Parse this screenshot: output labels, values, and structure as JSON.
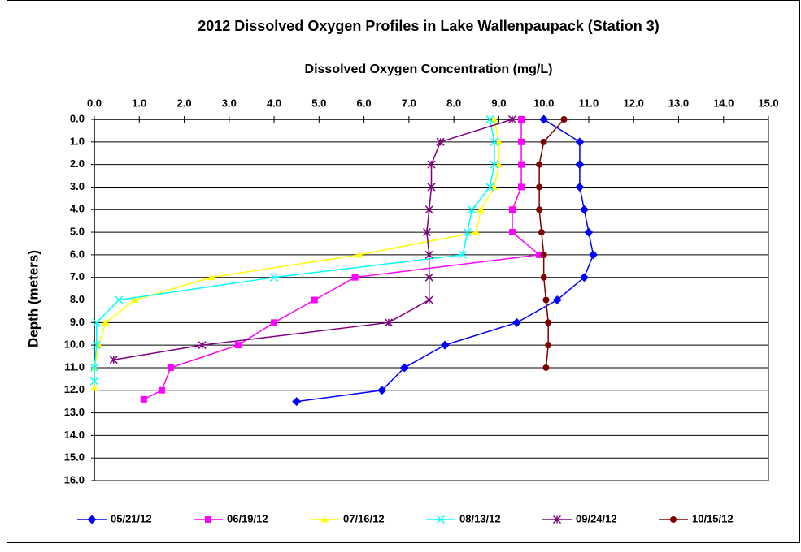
{
  "chart_data": {
    "type": "line",
    "title": "2012 Dissolved Oxygen Profiles in Lake Wallenpaupack (Station 3)",
    "x_label": "Dissolved Oxygen Concentration (mg/L)",
    "y_label": "Depth (meters)",
    "xlim": [
      0,
      15
    ],
    "ylim": [
      16,
      0
    ],
    "y_inverted": true,
    "x_axis_position": "top",
    "grid": true,
    "legend": "bottom",
    "xticks": [
      {
        "value": 0,
        "label": "0.0"
      },
      {
        "value": 1,
        "label": "1.0"
      },
      {
        "value": 2,
        "label": "2.0"
      },
      {
        "value": 3,
        "label": "3.0"
      },
      {
        "value": 4,
        "label": "4.0"
      },
      {
        "value": 5,
        "label": "5.0"
      },
      {
        "value": 6,
        "label": "6.0"
      },
      {
        "value": 7,
        "label": "7.0"
      },
      {
        "value": 8,
        "label": "8.0"
      },
      {
        "value": 9,
        "label": "9.0"
      },
      {
        "value": 10,
        "label": "10.0"
      },
      {
        "value": 11,
        "label": "11.0"
      },
      {
        "value": 12,
        "label": "12.0"
      },
      {
        "value": 13,
        "label": "13.0"
      },
      {
        "value": 14,
        "label": "14.0"
      },
      {
        "value": 15,
        "label": "15.0"
      }
    ],
    "yticks": [
      {
        "value": 0,
        "label": "0.0"
      },
      {
        "value": 1,
        "label": "1.0"
      },
      {
        "value": 2,
        "label": "2.0"
      },
      {
        "value": 3,
        "label": "3.0"
      },
      {
        "value": 4,
        "label": "4.0"
      },
      {
        "value": 5,
        "label": "5.0"
      },
      {
        "value": 6,
        "label": "6.0"
      },
      {
        "value": 7,
        "label": "7.0"
      },
      {
        "value": 8,
        "label": "8.0"
      },
      {
        "value": 9,
        "label": "9.0"
      },
      {
        "value": 10,
        "label": "10.0"
      },
      {
        "value": 11,
        "label": "11.0"
      },
      {
        "value": 12,
        "label": "12.0"
      },
      {
        "value": 13,
        "label": "13.0"
      },
      {
        "value": 14,
        "label": "14.0"
      },
      {
        "value": 15,
        "label": "15.0"
      },
      {
        "value": 16,
        "label": "16.0"
      }
    ],
    "series": [
      {
        "name": "05/21/12",
        "color": "#0000ff",
        "marker": "diamond",
        "x": [
          10.0,
          10.8,
          10.8,
          10.8,
          10.9,
          11.0,
          11.1,
          10.9,
          10.3,
          9.4,
          7.8,
          6.9,
          6.4,
          4.5
        ],
        "values": [
          0,
          1,
          2,
          3,
          4,
          5,
          6,
          7,
          8,
          9,
          10,
          11,
          12,
          12.5
        ]
      },
      {
        "name": "06/19/12",
        "color": "#ff00ff",
        "marker": "square",
        "x": [
          9.5,
          9.5,
          9.5,
          9.5,
          9.3,
          9.3,
          9.9,
          5.8,
          4.9,
          4.0,
          3.2,
          1.7,
          1.5,
          1.1
        ],
        "values": [
          0,
          1,
          2,
          3,
          4,
          5,
          6,
          7,
          8,
          9,
          10,
          11,
          12,
          12.4
        ]
      },
      {
        "name": "07/16/12",
        "color": "#ffff00",
        "marker": "triangle",
        "x": [
          8.9,
          9.0,
          9.0,
          8.9,
          8.6,
          8.5,
          5.9,
          2.6,
          0.9,
          0.25,
          0.1,
          0.0,
          0.0
        ],
        "values": [
          0,
          1,
          2,
          3,
          4,
          5,
          6,
          7,
          8,
          9,
          10,
          11,
          11.9
        ]
      },
      {
        "name": "08/13/12",
        "color": "#00ffff",
        "marker": "x",
        "x": [
          8.8,
          8.9,
          8.9,
          8.8,
          8.4,
          8.3,
          8.2,
          4.0,
          0.55,
          0.05,
          0.05,
          0.0,
          0.0
        ],
        "values": [
          0,
          1,
          2,
          3,
          4,
          5,
          6,
          7,
          8,
          9,
          10,
          11,
          11.6
        ]
      },
      {
        "name": "09/24/12",
        "color": "#800080",
        "marker": "asterisk",
        "x": [
          9.3,
          7.7,
          7.5,
          7.5,
          7.45,
          7.4,
          7.45,
          7.45,
          7.45,
          6.55,
          2.4,
          0.43
        ],
        "values": [
          0,
          1,
          2,
          3,
          4,
          5,
          6,
          7,
          8,
          9,
          10,
          10.65
        ]
      },
      {
        "name": "10/15/12",
        "color": "#800000",
        "marker": "circle",
        "x": [
          10.45,
          10.0,
          9.9,
          9.9,
          9.9,
          9.95,
          10.0,
          10.0,
          10.05,
          10.1,
          10.1,
          10.05
        ],
        "values": [
          0,
          1,
          2,
          3,
          4,
          5,
          6,
          7,
          8,
          9,
          10,
          11
        ]
      }
    ]
  }
}
